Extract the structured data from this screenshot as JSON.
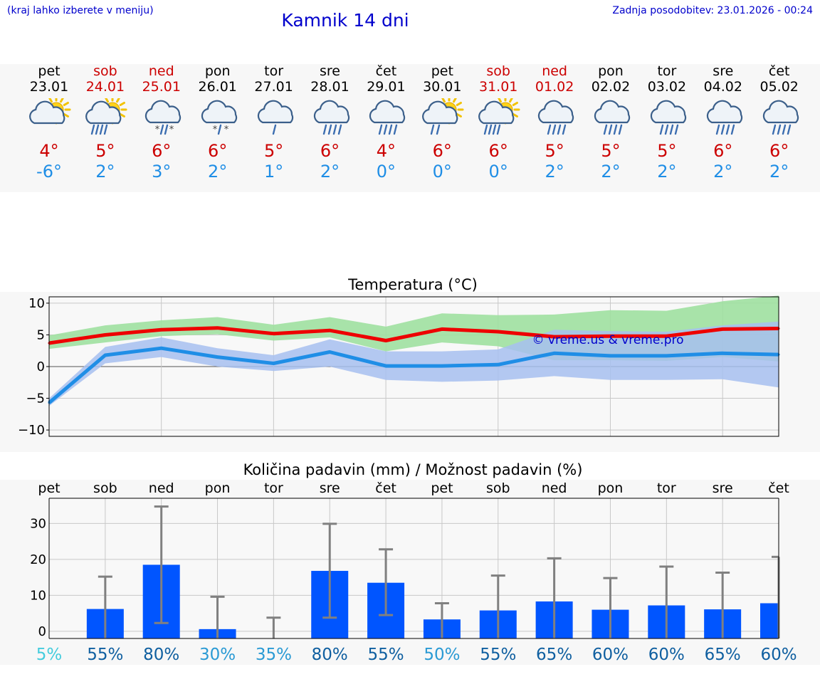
{
  "header": {
    "menu_note": "(kraj lahko izberete v meniju)",
    "title": "Kamnik 14 dni",
    "updated": "Zadnja posodobitev: 23.01.2026 - 00:24"
  },
  "days": [
    {
      "name": "pet",
      "date": "23.01",
      "weekend": false,
      "icon": "sun-cloud-icon",
      "tmax": "4°",
      "tmin": "-6°"
    },
    {
      "name": "sob",
      "date": "24.01",
      "weekend": true,
      "icon": "sun-rain-icon",
      "tmax": "5°",
      "tmin": "2°"
    },
    {
      "name": "ned",
      "date": "25.01",
      "weekend": true,
      "icon": "rain-snow-icon",
      "tmax": "6°",
      "tmin": "3°"
    },
    {
      "name": "pon",
      "date": "26.01",
      "weekend": false,
      "icon": "snow-cloud-icon",
      "tmax": "6°",
      "tmin": "2°"
    },
    {
      "name": "tor",
      "date": "27.01",
      "weekend": false,
      "icon": "light-rain-icon",
      "tmax": "5°",
      "tmin": "1°"
    },
    {
      "name": "sre",
      "date": "28.01",
      "weekend": false,
      "icon": "rain-icon",
      "tmax": "6°",
      "tmin": "2°"
    },
    {
      "name": "čet",
      "date": "29.01",
      "weekend": false,
      "icon": "rain-icon",
      "tmax": "4°",
      "tmin": "0°"
    },
    {
      "name": "pet",
      "date": "30.01",
      "weekend": false,
      "icon": "sun-light-rain-icon",
      "tmax": "6°",
      "tmin": "0°"
    },
    {
      "name": "sob",
      "date": "31.01",
      "weekend": true,
      "icon": "sun-rain-icon",
      "tmax": "6°",
      "tmin": "0°"
    },
    {
      "name": "ned",
      "date": "01.02",
      "weekend": true,
      "icon": "rain-icon",
      "tmax": "5°",
      "tmin": "2°"
    },
    {
      "name": "pon",
      "date": "02.02",
      "weekend": false,
      "icon": "rain-icon",
      "tmax": "5°",
      "tmin": "2°"
    },
    {
      "name": "tor",
      "date": "03.02",
      "weekend": false,
      "icon": "rain-icon",
      "tmax": "5°",
      "tmin": "2°"
    },
    {
      "name": "sre",
      "date": "04.02",
      "weekend": false,
      "icon": "rain-icon",
      "tmax": "6°",
      "tmin": "2°"
    },
    {
      "name": "čet",
      "date": "05.02",
      "weekend": false,
      "icon": "rain-icon",
      "tmax": "6°",
      "tmin": "2°"
    }
  ],
  "colors": {
    "weekend": "#cc0000",
    "weekday": "#000000",
    "max_line": "#ee0000",
    "min_line": "#1f8ee6",
    "max_band": "#9fe0a0",
    "min_band": "#a7bff0",
    "bar": "#0055ff",
    "whisker": "#808080",
    "watermark": "#0000cc"
  },
  "chart_data": [
    {
      "type": "line",
      "title": "Temperatura (°C)",
      "x": [
        0,
        1,
        2,
        3,
        4,
        5,
        6,
        7,
        8,
        9,
        10,
        11,
        12,
        13
      ],
      "ylim": [
        -11,
        11
      ],
      "yticks": [
        -10,
        -5,
        0,
        5,
        10
      ],
      "ytick_labels": [
        "−10",
        "−5",
        "0",
        "5",
        "10"
      ],
      "grid": true,
      "watermark": "© vreme.us & vreme.pro",
      "series": [
        {
          "name": "max",
          "values": [
            3.7,
            5.0,
            5.8,
            6.1,
            5.2,
            5.7,
            4.1,
            5.9,
            5.5,
            4.7,
            4.8,
            4.8,
            5.9,
            6.0
          ],
          "band_low": [
            2.8,
            3.8,
            4.8,
            5.1,
            4.1,
            4.6,
            2.4,
            3.8,
            3.2,
            1.0,
            1.0,
            0.9,
            1.5,
            0.8
          ],
          "band_high": [
            4.9,
            6.5,
            7.3,
            7.8,
            6.6,
            7.8,
            6.3,
            8.4,
            8.1,
            8.2,
            8.9,
            8.8,
            10.3,
            11.2
          ]
        },
        {
          "name": "min",
          "values": [
            -5.7,
            1.8,
            2.9,
            1.5,
            0.5,
            2.3,
            0.1,
            0.1,
            0.3,
            2.1,
            1.7,
            1.7,
            2.1,
            1.9
          ],
          "band_low": [
            -6.2,
            0.5,
            1.5,
            0.0,
            -0.7,
            0.0,
            -2.1,
            -2.4,
            -2.2,
            -1.5,
            -2.1,
            -2.1,
            -2.0,
            -3.3
          ],
          "band_high": [
            -5.0,
            3.1,
            4.6,
            2.9,
            1.8,
            4.3,
            2.4,
            2.4,
            2.7,
            5.8,
            5.6,
            5.5,
            6.5,
            7.1
          ]
        }
      ]
    },
    {
      "type": "bar",
      "title": "Količina padavin (mm) / Možnost padavin (%)",
      "categories": [
        "pet",
        "sob",
        "ned",
        "pon",
        "tor",
        "sre",
        "čet",
        "pet",
        "sob",
        "ned",
        "pon",
        "tor",
        "sre",
        "čet"
      ],
      "values": [
        0,
        6.2,
        18.5,
        0.6,
        0,
        16.8,
        13.5,
        3.3,
        5.8,
        8.3,
        6.0,
        7.2,
        6.1,
        7.8
      ],
      "err_high": [
        0,
        15.2,
        34.7,
        9.6,
        3.8,
        29.9,
        22.8,
        7.8,
        15.5,
        20.3,
        14.8,
        18.0,
        16.3,
        20.7
      ],
      "err_low": [
        0,
        0,
        2.3,
        0,
        0,
        3.8,
        4.5,
        0,
        0,
        0,
        0,
        0,
        0,
        0
      ],
      "ylim": [
        -2,
        37
      ],
      "yticks": [
        0,
        10,
        20,
        30
      ],
      "ytick_labels": [
        "0",
        "10",
        "20",
        "30"
      ],
      "probability": [
        "5%",
        "55%",
        "80%",
        "30%",
        "35%",
        "80%",
        "55%",
        "50%",
        "55%",
        "65%",
        "60%",
        "60%",
        "65%",
        "60%"
      ],
      "probability_colors": [
        "#44ccdd",
        "#0f5fa0",
        "#0f5fa0",
        "#2a9ad4",
        "#2a9ad4",
        "#0f5fa0",
        "#0f5fa0",
        "#2a9ad4",
        "#0f5fa0",
        "#0f5fa0",
        "#0f5fa0",
        "#0f5fa0",
        "#0f5fa0",
        "#0f5fa0"
      ]
    }
  ]
}
